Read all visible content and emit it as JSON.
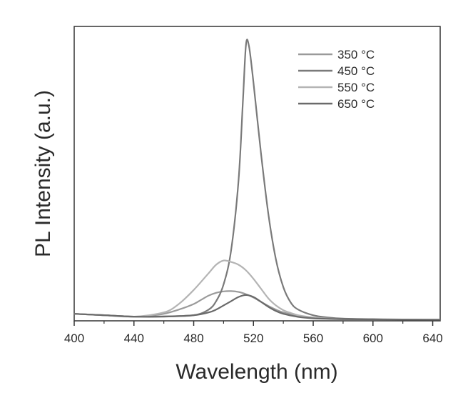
{
  "chart_data": {
    "type": "line",
    "title": "",
    "xlabel": "Wavelength (nm)",
    "ylabel": "PL Intensity (a.u.)",
    "xlim": [
      400,
      645
    ],
    "ylim": [
      0,
      1.05
    ],
    "x_ticks": [
      400,
      440,
      480,
      520,
      560,
      600,
      640
    ],
    "x_tick_labels": [
      "400",
      "440",
      "480",
      "520",
      "560",
      "600",
      "640"
    ],
    "y_ticks_shown": false,
    "grid": false,
    "legend_position": "top-right",
    "series": [
      {
        "name": "350 °C",
        "color": "#9a9a9a",
        "x": [
          400,
          420,
          440,
          450,
          460,
          470,
          480,
          485,
          490,
          495,
          500,
          505,
          510,
          515,
          520,
          525,
          530,
          535,
          540,
          550,
          560,
          570,
          580,
          600,
          620,
          645
        ],
        "y": [
          0.025,
          0.02,
          0.015,
          0.018,
          0.025,
          0.04,
          0.06,
          0.075,
          0.09,
          0.1,
          0.105,
          0.106,
          0.103,
          0.095,
          0.083,
          0.068,
          0.053,
          0.04,
          0.03,
          0.018,
          0.012,
          0.008,
          0.006,
          0.005,
          0.004,
          0.004
        ]
      },
      {
        "name": "450 °C",
        "color": "#7a7a7a",
        "x": [
          400,
          420,
          440,
          460,
          480,
          490,
          495,
          500,
          505,
          510,
          513,
          515,
          517,
          520,
          525,
          530,
          535,
          540,
          545,
          550,
          560,
          570,
          580,
          600,
          620,
          645
        ],
        "y": [
          0.025,
          0.02,
          0.015,
          0.016,
          0.02,
          0.04,
          0.07,
          0.13,
          0.25,
          0.5,
          0.79,
          0.985,
          0.98,
          0.85,
          0.6,
          0.38,
          0.22,
          0.12,
          0.065,
          0.04,
          0.02,
          0.012,
          0.008,
          0.006,
          0.005,
          0.004
        ]
      },
      {
        "name": "550 °C",
        "color": "#b4b4b4",
        "x": [
          400,
          420,
          440,
          460,
          470,
          480,
          490,
          495,
          500,
          505,
          510,
          515,
          520,
          525,
          530,
          535,
          540,
          545,
          550,
          560,
          570,
          580,
          600,
          620,
          645
        ],
        "y": [
          0.025,
          0.02,
          0.015,
          0.03,
          0.06,
          0.11,
          0.17,
          0.2,
          0.215,
          0.21,
          0.2,
          0.18,
          0.15,
          0.115,
          0.08,
          0.055,
          0.038,
          0.028,
          0.02,
          0.012,
          0.008,
          0.006,
          0.005,
          0.004,
          0.004
        ]
      },
      {
        "name": "650 °C",
        "color": "#6a6a6a",
        "x": [
          400,
          420,
          440,
          460,
          480,
          490,
          495,
          500,
          505,
          510,
          515,
          520,
          525,
          530,
          535,
          540,
          550,
          560,
          570,
          580,
          600,
          620,
          645
        ],
        "y": [
          0.025,
          0.02,
          0.015,
          0.015,
          0.02,
          0.03,
          0.04,
          0.055,
          0.07,
          0.085,
          0.092,
          0.085,
          0.068,
          0.05,
          0.035,
          0.025,
          0.014,
          0.009,
          0.007,
          0.006,
          0.005,
          0.004,
          0.004
        ]
      }
    ]
  }
}
